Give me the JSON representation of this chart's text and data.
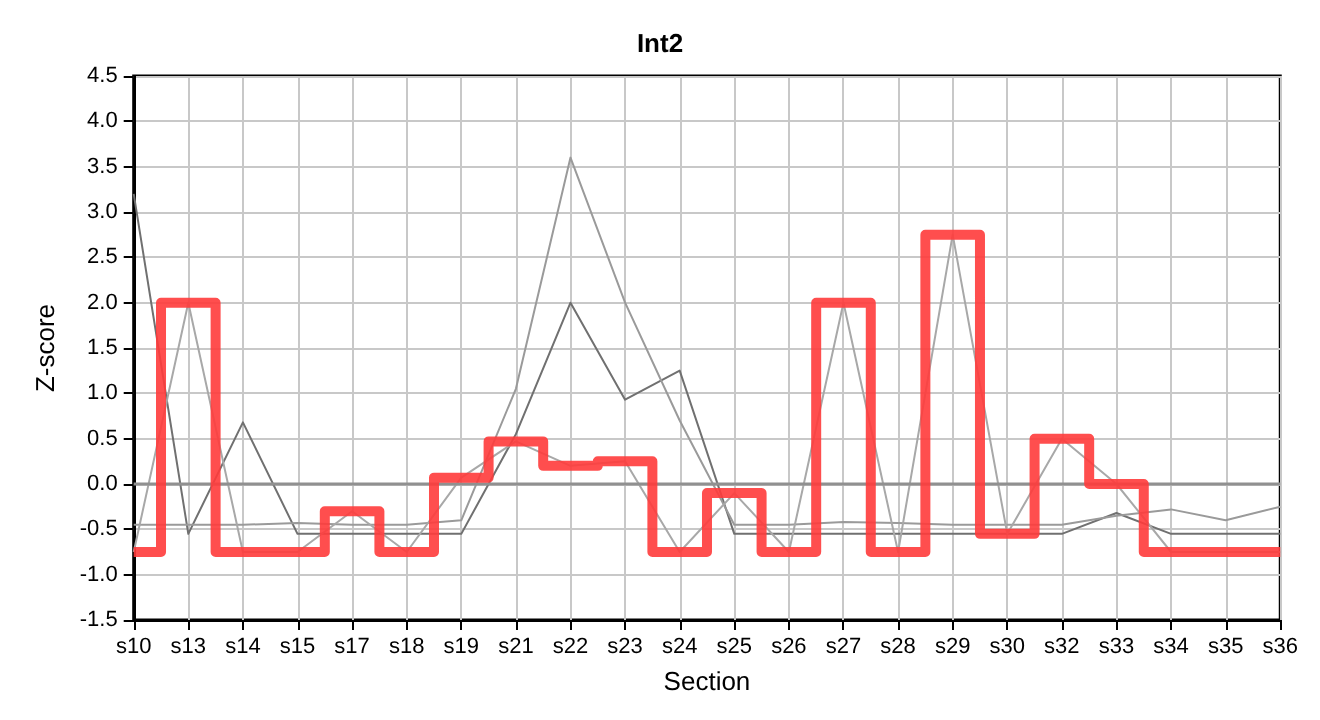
{
  "chart_data": {
    "type": "line",
    "title": "Int2",
    "xlabel": "Section",
    "ylabel": "Z-score",
    "categories": [
      "s10",
      "s13",
      "s14",
      "s15",
      "s17",
      "s18",
      "s19",
      "s21",
      "s22",
      "s23",
      "s24",
      "s25",
      "s26",
      "s27",
      "s28",
      "s29",
      "s30",
      "s32",
      "s33",
      "s34",
      "s35",
      "s36"
    ],
    "series": [
      {
        "color": "#707070",
        "values": [
          3.2,
          -0.55,
          0.68,
          -0.55,
          -0.55,
          -0.55,
          -0.55,
          0.55,
          2.0,
          0.93,
          1.25,
          -0.55,
          -0.55,
          -0.55,
          -0.55,
          -0.55,
          -0.55,
          -0.55,
          -0.32,
          -0.55,
          -0.55,
          -0.55
        ]
      },
      {
        "color": "#9a9a9a",
        "values": [
          -0.45,
          -0.45,
          -0.45,
          -0.43,
          -0.45,
          -0.45,
          -0.4,
          1.05,
          3.6,
          2.0,
          0.7,
          -0.45,
          -0.45,
          -0.42,
          -0.43,
          -0.45,
          -0.45,
          -0.45,
          -0.35,
          -0.28,
          -0.4,
          -0.25
        ]
      },
      {
        "color": "#a8a8a8",
        "values": [
          -0.75,
          2.0,
          -0.75,
          -0.75,
          -0.3,
          -0.75,
          0.07,
          0.47,
          0.2,
          0.25,
          -0.75,
          -0.1,
          -0.75,
          2.0,
          -0.75,
          2.75,
          -0.55,
          0.5,
          0.0,
          -0.75,
          -0.75,
          -0.75
        ]
      },
      {
        "type": "step",
        "color": "#ff3b3b",
        "values": [
          -0.75,
          2.0,
          -0.75,
          -0.75,
          -0.3,
          -0.75,
          0.07,
          0.47,
          0.2,
          0.25,
          -0.75,
          -0.1,
          -0.75,
          2.0,
          -0.75,
          2.75,
          -0.55,
          0.5,
          0.0,
          -0.75,
          -0.75,
          -0.75
        ]
      }
    ],
    "ylim": [
      -1.5,
      4.5
    ],
    "yticks": [
      {
        "value": -1.5,
        "label": "-1.5"
      },
      {
        "value": -1,
        "label": "-1.0"
      },
      {
        "value": -0.5,
        "label": "-0.5"
      },
      {
        "value": 0,
        "label": "0.0"
      },
      {
        "value": 0.5,
        "label": "0.5"
      },
      {
        "value": 1,
        "label": "1.0"
      },
      {
        "value": 1.5,
        "label": "1.5"
      },
      {
        "value": 2,
        "label": "2.0"
      },
      {
        "value": 2.5,
        "label": "2.5"
      },
      {
        "value": 3,
        "label": "3.0"
      },
      {
        "value": 3.5,
        "label": "3.5"
      },
      {
        "value": 4,
        "label": "4.0"
      },
      {
        "value": 4.5,
        "label": "4.5"
      }
    ],
    "ref_lines": [
      {
        "axis": "y",
        "value": 0,
        "color": "#909090"
      }
    ],
    "grid": true,
    "marker": "none"
  }
}
